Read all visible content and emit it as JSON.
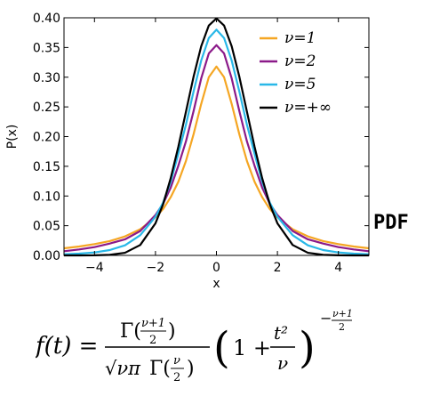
{
  "side_label": "PDF",
  "formula": {
    "lhs": "f(t) =",
    "num": "Γ(",
    "num_frac_top": "ν+1",
    "num_frac_bot": "2",
    "num_close": ")",
    "den_sqrt": "√νπ",
    "den_gamma": "Γ(",
    "den_frac_top": "ν",
    "den_frac_bot": "2",
    "den_close": ")",
    "paren_open": "(",
    "one_plus": "1 +",
    "t2": "t²",
    "nu": "ν",
    "paren_close": ")",
    "exp_minus": "−",
    "exp_top": "ν+1",
    "exp_bot": "2"
  },
  "chart_data": {
    "type": "line",
    "title": "",
    "xlabel": "x",
    "ylabel": "P(x)",
    "xlim": [
      -5,
      5
    ],
    "ylim": [
      0,
      0.4
    ],
    "xticks": [
      -4,
      -2,
      0,
      2,
      4
    ],
    "xtick_labels": [
      "−4",
      "−2",
      "0",
      "2",
      "4"
    ],
    "yticks": [
      0.0,
      0.05,
      0.1,
      0.15,
      0.2,
      0.25,
      0.3,
      0.35,
      0.4
    ],
    "ytick_labels": [
      "0.00",
      "0.05",
      "0.10",
      "0.15",
      "0.20",
      "0.25",
      "0.30",
      "0.35",
      "0.40"
    ],
    "grid": false,
    "legend_position": "top-right",
    "x": [
      -5,
      -4.5,
      -4,
      -3.5,
      -3,
      -2.5,
      -2,
      -1.75,
      -1.5,
      -1.25,
      -1,
      -0.75,
      -0.5,
      -0.25,
      0,
      0.25,
      0.5,
      0.75,
      1,
      1.25,
      1.5,
      1.75,
      2,
      2.5,
      3,
      3.5,
      4,
      4.5,
      5
    ],
    "series": [
      {
        "name": "ν=1",
        "color": "#f5a623",
        "values": [
          0.012,
          0.015,
          0.019,
          0.024,
          0.032,
          0.044,
          0.064,
          0.078,
          0.098,
          0.124,
          0.159,
          0.204,
          0.255,
          0.3,
          0.318,
          0.3,
          0.255,
          0.204,
          0.159,
          0.124,
          0.098,
          0.078,
          0.064,
          0.044,
          0.032,
          0.024,
          0.019,
          0.015,
          0.012
        ]
      },
      {
        "name": "ν=2",
        "color": "#8b1a89",
        "values": [
          0.007,
          0.01,
          0.014,
          0.02,
          0.027,
          0.041,
          0.068,
          0.087,
          0.114,
          0.151,
          0.192,
          0.243,
          0.298,
          0.34,
          0.354,
          0.34,
          0.298,
          0.243,
          0.192,
          0.151,
          0.114,
          0.087,
          0.068,
          0.041,
          0.027,
          0.02,
          0.014,
          0.01,
          0.007
        ]
      },
      {
        "name": "ν=5",
        "color": "#29b8e8",
        "values": [
          0.002,
          0.003,
          0.005,
          0.009,
          0.017,
          0.034,
          0.065,
          0.089,
          0.124,
          0.171,
          0.22,
          0.276,
          0.328,
          0.366,
          0.38,
          0.366,
          0.328,
          0.276,
          0.22,
          0.171,
          0.124,
          0.089,
          0.065,
          0.034,
          0.017,
          0.009,
          0.005,
          0.003,
          0.002
        ]
      },
      {
        "name": "ν=+∞",
        "color": "#000000",
        "values": [
          1.5e-06,
          1.6e-05,
          0.00013,
          0.0009,
          0.0044,
          0.0175,
          0.054,
          0.086,
          0.13,
          0.183,
          0.242,
          0.301,
          0.352,
          0.387,
          0.399,
          0.387,
          0.352,
          0.301,
          0.242,
          0.183,
          0.13,
          0.086,
          0.054,
          0.0175,
          0.0044,
          0.0009,
          0.00013,
          1.6e-05,
          1.5e-06
        ]
      }
    ]
  }
}
